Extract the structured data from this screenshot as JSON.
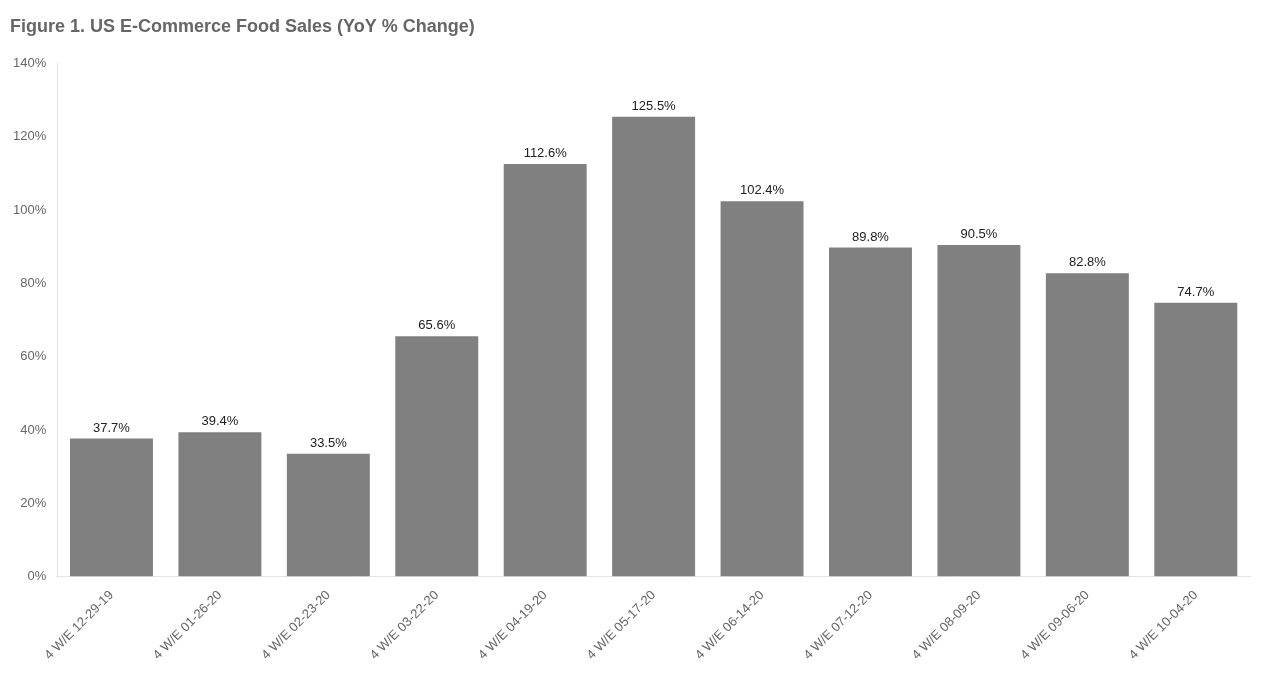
{
  "chart_data": {
    "type": "bar",
    "title": "Figure 1. US E-Commerce Food Sales (YoY % Change)",
    "categories": [
      "4 W/E 12-29-19",
      "4 W/E 01-26-20",
      "4 W/E 02-23-20",
      "4 W/E 03-22-20",
      "4 W/E 04-19-20",
      "4 W/E 05-17-20",
      "4 W/E 06-14-20",
      "4 W/E 07-12-20",
      "4 W/E 08-09-20",
      "4 W/E 09-06-20",
      "4 W/E 10-04-20"
    ],
    "values": [
      37.7,
      39.4,
      33.5,
      65.6,
      112.6,
      125.5,
      102.4,
      89.8,
      90.5,
      82.8,
      74.7
    ],
    "value_labels": [
      "37.7%",
      "39.4%",
      "33.5%",
      "65.6%",
      "112.6%",
      "125.5%",
      "102.4%",
      "89.8%",
      "90.5%",
      "82.8%",
      "74.7%"
    ],
    "data_labels": true,
    "color": "#808080",
    "ylim": [
      0,
      140
    ],
    "yticks": [
      {
        "value": 0,
        "label": "0%"
      },
      {
        "value": 20,
        "label": "20%"
      },
      {
        "value": 40,
        "label": "40%"
      },
      {
        "value": 60,
        "label": "60%"
      },
      {
        "value": 80,
        "label": "80%"
      },
      {
        "value": 100,
        "label": "100%"
      },
      {
        "value": 120,
        "label": "120%"
      },
      {
        "value": 140,
        "label": "140%"
      }
    ],
    "grid": false
  }
}
